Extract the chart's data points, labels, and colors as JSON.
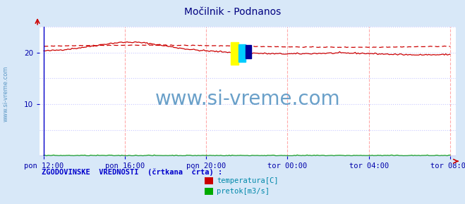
{
  "title": "Močilnik - Podnanos",
  "bg_color": "#d8e8f8",
  "plot_bg_color": "#ffffff",
  "axis_color": "#0000cc",
  "title_color": "#000080",
  "tick_label_color": "#0000aa",
  "watermark_color": "#5090c0",
  "ylim": [
    0,
    25
  ],
  "yticks": [
    10,
    20
  ],
  "xtick_labels": [
    "pon 12:00",
    "pon 16:00",
    "pon 20:00",
    "tor 00:00",
    "tor 04:00",
    "tor 08:00"
  ],
  "n_points": 288,
  "legend_text1": "temperatura[C]",
  "legend_text2": "pretok[m3/s]",
  "legend_label": "ZGODOVINSKE  VREDNOSTI  (črtkana  črta) :",
  "temp_color": "#cc0000",
  "flow_color": "#00aa00",
  "watermark_text": "www.si-vreme.com",
  "side_text": "www.si-vreme.com"
}
